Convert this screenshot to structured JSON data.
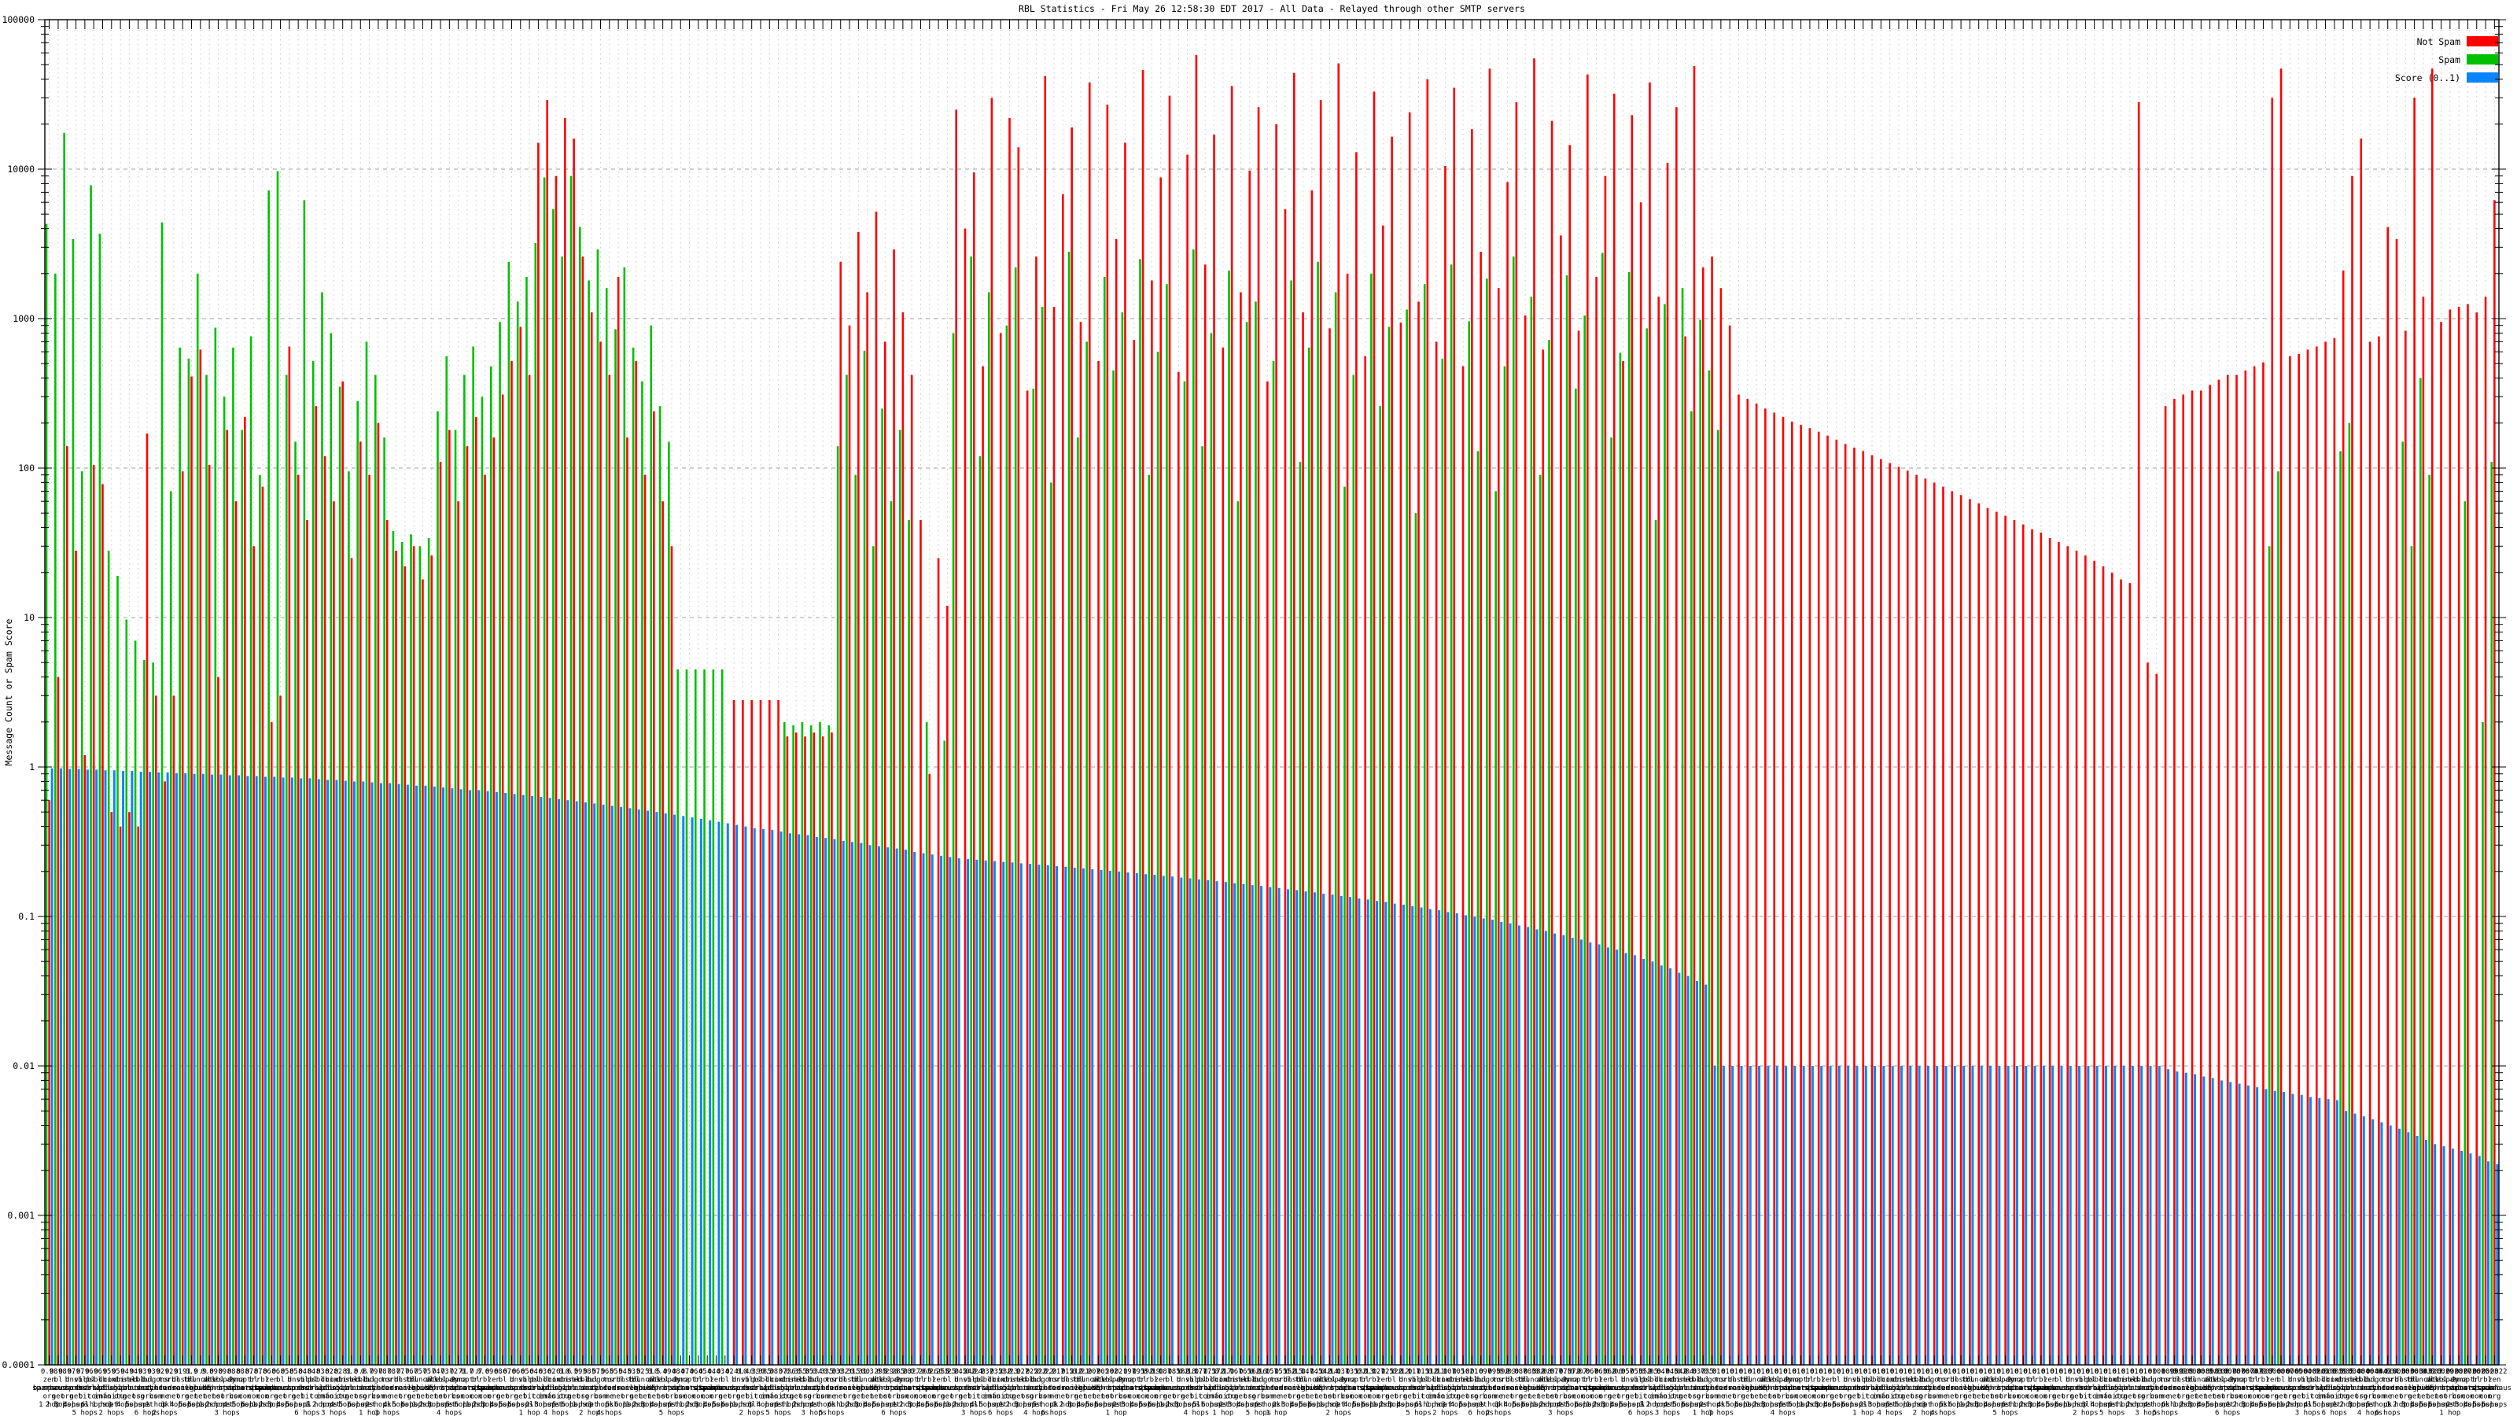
{
  "title": "RBL Statistics - Fri May 26 12:58:30 EDT 2017 - All Data - Relayed through other SMTP servers",
  "axes": {
    "ylabel": "Message Count or Spam Score",
    "y_tick_labels": [
      "100000",
      "10000",
      "1000",
      "100",
      "10",
      "1",
      "0.1",
      "0.01",
      "0.001",
      "0.0001"
    ]
  },
  "legend": {
    "not_spam": "Not Spam",
    "spam": "Spam",
    "score": "Score (0..1)"
  },
  "colors": {
    "not_spam": "#ff0000",
    "spam": "#00c000",
    "score": "#0a84ff",
    "grid_major": "#a0a0a0",
    "grid_minor": "#c8c8c8",
    "axis": "#000000"
  },
  "rbl_pool": [
    "zen.spamhaus.org",
    "bl.spamcop.net",
    "b.barracudacentral.org",
    "dnsbl.sorbs.net",
    "virbl.dnsbl.bit.nl",
    "psbl.surriel.com",
    "db.wpbl.info",
    "ix.dnsbl.manitu.net",
    "combined.njabl.org",
    "dnsbl-1.uceprotect.net",
    "cbl.abuseat.org",
    "dul.dnsbl.sorbs.net",
    "bogons.cymru.com",
    "tor.dan.me.uk",
    "rbl.interserver.net",
    "dnsbl.dronebl.org",
    "bl.mailspike.net",
    "truncate.gbudb.net",
    "all.s5h.net",
    "dnsbl-2.uceprotect.net",
    "spam.dnsbl.sorbs.net",
    "dyna.spamrats.com",
    "noptr.spamrats.com",
    "bl.nordspam.com",
    "rbl.spamlab.com"
  ],
  "chart_data": {
    "type": "bar",
    "title": "RBL Statistics - Fri May 26 12:58:30 EDT 2017 - All Data - Relayed through other SMTP servers",
    "yscale": "log",
    "ylim": [
      0.0001,
      100000
    ],
    "grid": true,
    "legend_position": "top-right-inside",
    "rbl_index": [
      0,
      1,
      2,
      3,
      4,
      5,
      6,
      7,
      8,
      9,
      10,
      11,
      12,
      13,
      14,
      15,
      16,
      17,
      18,
      19,
      20,
      21,
      22,
      23,
      24,
      0,
      1,
      2,
      3,
      4,
      5,
      6,
      7,
      8,
      9,
      10,
      11,
      12,
      13,
      14,
      15,
      16,
      17,
      18,
      19,
      20,
      21,
      22,
      23,
      24,
      0,
      1,
      2,
      3,
      4,
      5,
      6,
      7,
      8,
      9,
      10,
      11,
      12,
      13,
      14,
      15,
      16,
      17,
      18,
      19,
      20,
      21,
      22,
      23,
      24,
      0,
      1,
      2,
      3,
      4,
      5,
      6,
      7,
      8,
      9,
      10,
      11,
      12,
      13,
      14,
      15,
      16,
      17,
      18,
      19,
      20,
      21,
      22,
      23,
      24,
      0,
      1,
      2,
      3,
      4,
      5,
      6,
      7,
      8,
      9,
      10,
      11,
      12,
      13,
      14,
      15,
      16,
      17,
      18,
      19,
      20,
      21,
      22,
      23,
      24,
      0,
      1,
      2,
      3,
      4,
      5,
      6,
      7,
      8,
      9,
      10,
      11,
      12,
      13,
      14,
      15,
      16,
      17,
      18,
      19,
      20,
      21,
      22,
      23,
      24,
      0,
      1,
      2,
      3,
      4,
      5,
      6,
      7,
      8,
      9,
      10,
      11,
      12,
      13,
      14,
      15,
      16,
      17,
      18,
      19,
      20,
      21,
      22,
      23,
      24,
      0,
      1,
      2,
      3,
      4,
      5,
      6,
      7,
      8,
      9,
      10,
      11,
      12,
      13,
      14,
      15,
      16,
      17,
      18,
      19,
      20,
      21,
      22,
      23,
      24,
      0,
      1,
      2,
      3,
      4,
      5,
      6,
      7,
      8,
      9,
      10,
      11,
      12,
      13,
      14,
      15,
      16,
      17,
      18,
      19,
      20,
      21,
      22,
      23,
      24,
      0,
      1,
      2,
      3,
      4,
      5,
      6,
      7,
      8,
      9,
      10,
      11,
      12,
      13,
      14,
      15,
      16,
      17,
      18,
      19,
      20,
      21,
      22,
      23,
      24,
      0,
      1,
      2,
      3,
      4,
      5,
      6,
      7,
      8,
      9,
      10,
      11,
      12,
      13,
      14,
      15,
      16,
      17,
      18,
      19,
      20,
      21,
      22,
      23,
      24,
      0
    ],
    "hops": [
      1,
      2,
      3,
      4,
      5,
      6,
      1,
      2,
      3,
      4,
      5,
      6,
      1,
      2,
      3,
      4,
      5,
      6,
      1,
      2,
      3,
      4,
      5,
      6,
      1,
      2,
      3,
      4,
      5,
      6,
      1,
      2,
      3,
      4,
      5,
      6,
      1,
      2,
      3,
      4,
      5,
      6,
      1,
      2,
      3,
      4,
      5,
      6,
      1,
      2,
      3,
      4,
      5,
      6,
      1,
      2,
      3,
      4,
      5,
      6,
      1,
      2,
      3,
      4,
      5,
      6,
      1,
      2,
      3,
      4,
      5,
      6,
      1,
      2,
      3,
      4,
      5,
      6,
      1,
      2,
      3,
      4,
      5,
      6,
      1,
      2,
      3,
      4,
      5,
      6,
      1,
      2,
      3,
      4,
      5,
      6,
      1,
      2,
      3,
      4,
      5,
      6,
      1,
      2,
      3,
      4,
      5,
      6,
      1,
      2,
      3,
      4,
      5,
      6,
      1,
      2,
      3,
      4,
      5,
      6,
      1,
      2,
      3,
      4,
      5,
      6,
      1,
      2,
      3,
      4,
      5,
      6,
      1,
      2,
      3,
      4,
      5,
      6,
      1,
      2,
      3,
      4,
      5,
      6,
      1,
      2,
      3,
      4,
      5,
      6,
      1,
      2,
      3,
      4,
      5,
      6,
      1,
      2,
      3,
      4,
      5,
      6,
      1,
      2,
      3,
      4,
      5,
      6,
      1,
      2,
      3,
      4,
      5,
      6,
      1,
      2,
      3,
      4,
      5,
      6,
      1,
      2,
      3,
      4,
      5,
      6,
      1,
      2,
      3,
      4,
      5,
      6,
      1,
      2,
      3,
      4,
      5,
      6,
      1,
      2,
      3,
      4,
      5,
      6,
      1,
      2,
      3,
      4,
      5,
      6,
      1,
      2,
      3,
      4,
      5,
      6,
      1,
      2,
      3,
      4,
      5,
      6,
      1,
      2,
      3,
      4,
      5,
      6,
      1,
      2,
      3,
      4,
      5,
      6,
      1,
      2,
      3,
      4,
      5,
      6,
      1,
      2,
      3,
      4,
      5,
      6,
      1,
      2,
      3,
      4,
      5,
      6,
      1,
      2,
      3,
      4,
      5,
      6,
      1,
      2,
      3,
      4,
      5,
      6,
      1,
      2,
      3,
      4,
      5,
      6,
      1,
      2,
      3,
      4,
      5,
      6
    ],
    "series": [
      {
        "name": "Not Spam",
        "color_key": "not_spam",
        "values": [
          0.6,
          4,
          140,
          28,
          1.2,
          105,
          78,
          0.5,
          0.4,
          0.5,
          0.4,
          170,
          3,
          0.8,
          3,
          95,
          410,
          620,
          105,
          4,
          180,
          60,
          220,
          30,
          75,
          2,
          3,
          650,
          90,
          45,
          260,
          120,
          60,
          380,
          25,
          150,
          90,
          200,
          45,
          28,
          22,
          30,
          18,
          26,
          110,
          180,
          60,
          140,
          220,
          90,
          160,
          310,
          520,
          880,
          420,
          15000,
          29000,
          9000,
          22000,
          16000,
          2600,
          1100,
          700,
          420,
          1900,
          160,
          520,
          90,
          240,
          60,
          30,
          0,
          0,
          0,
          0,
          0,
          0,
          2.8,
          2.8,
          2.8,
          2.8,
          2.8,
          2.8,
          1.6,
          1.7,
          1.6,
          1.7,
          1.6,
          1.7,
          2400,
          900,
          3800,
          1500,
          5200,
          700,
          2900,
          1100,
          420,
          45,
          0.9,
          25,
          12,
          25000,
          4000,
          9500,
          480,
          30000,
          800,
          22000,
          14000,
          330,
          2600,
          42000,
          1200,
          6800,
          19000,
          950,
          38000,
          520,
          27000,
          3400,
          15000,
          720,
          46000,
          1800,
          8800,
          31000,
          440,
          12500,
          58000,
          2300,
          17000,
          640,
          36000,
          1500,
          9800,
          26000,
          380,
          20000,
          5400,
          44000,
          1100,
          7200,
          29000,
          860,
          51000,
          2000,
          13000,
          560,
          33000,
          4200,
          16500,
          940,
          24000,
          1300,
          40000,
          700,
          10500,
          35000,
          480,
          18500,
          2800,
          47000,
          1600,
          8200,
          28000,
          1050,
          55000,
          620,
          21000,
          3600,
          14500,
          830,
          43000,
          1900,
          9000,
          32000,
          520,
          23000,
          6000,
          38000,
          1400,
          11000,
          26000,
          760,
          49000,
          2200,
          2600,
          1600,
          900,
          310,
          290,
          270,
          250,
          235,
          220,
          205,
          195,
          185,
          175,
          165,
          155,
          145,
          137,
          130,
          122,
          115,
          108,
          102,
          96,
          90,
          85,
          80,
          75,
          70,
          66,
          62,
          58,
          54,
          51,
          48,
          45,
          42,
          39,
          37,
          34,
          32,
          30,
          28,
          26,
          24,
          22,
          20,
          18,
          17,
          28000,
          5,
          4.2,
          260,
          290,
          310,
          330,
          330,
          360,
          390,
          420,
          420,
          450,
          480,
          510,
          30000,
          47000,
          560,
          580,
          620,
          650,
          700,
          740,
          2100,
          9000,
          16000,
          700,
          760,
          4100,
          3400,
          830,
          30000,
          1400,
          47000,
          950,
          1150,
          1200,
          1250,
          1100,
          1400,
          6200
        ]
      },
      {
        "name": "Spam",
        "color_key": "spam",
        "values": [
          4300,
          2000,
          17500,
          3400,
          95,
          7800,
          3700,
          28,
          19,
          9.7,
          7,
          5.2,
          5,
          4400,
          70,
          640,
          540,
          2000,
          420,
          870,
          300,
          640,
          180,
          760,
          90,
          7200,
          9700,
          420,
          150,
          6200,
          520,
          1500,
          800,
          350,
          95,
          280,
          700,
          420,
          160,
          38,
          32,
          36,
          30,
          34,
          240,
          560,
          180,
          420,
          650,
          300,
          480,
          950,
          2400,
          1300,
          1900,
          3200,
          8800,
          5400,
          2600,
          9000,
          4100,
          1800,
          2900,
          1600,
          850,
          2200,
          640,
          380,
          900,
          260,
          150,
          4.5,
          4.5,
          4.5,
          4.5,
          4.5,
          4.5,
          0,
          0,
          0,
          0,
          0,
          0,
          2,
          1.9,
          2,
          1.9,
          2,
          1.9,
          140,
          420,
          90,
          610,
          30,
          250,
          60,
          180,
          45,
          0,
          2,
          0,
          1.5,
          800,
          0,
          2600,
          120,
          1500,
          0,
          900,
          2200,
          0,
          340,
          1200,
          80,
          0,
          2800,
          160,
          700,
          0,
          1900,
          450,
          1100,
          0,
          2500,
          90,
          600,
          1700,
          0,
          380,
          2900,
          140,
          800,
          0,
          2100,
          60,
          950,
          1300,
          0,
          520,
          0,
          1800,
          110,
          640,
          2400,
          0,
          1500,
          75,
          420,
          0,
          2000,
          260,
          880,
          0,
          1150,
          50,
          1700,
          0,
          540,
          2300,
          0,
          960,
          130,
          1850,
          70,
          480,
          2600,
          0,
          1400,
          90,
          720,
          0,
          1950,
          340,
          1050,
          0,
          2750,
          160,
          590,
          2050,
          0,
          860,
          45,
          1250,
          0,
          1600,
          240,
          980,
          450,
          180,
          0,
          0,
          0,
          0,
          0,
          0,
          0,
          0,
          0,
          0,
          0,
          0,
          0,
          0,
          0,
          0,
          0,
          0,
          0,
          0,
          0,
          0,
          0,
          0,
          0,
          0,
          0,
          0,
          0,
          0,
          0,
          0,
          0,
          0,
          0,
          0,
          0,
          0,
          0,
          0,
          0,
          0,
          0,
          0,
          0,
          0,
          0,
          0,
          0,
          0,
          0,
          0,
          0,
          0,
          0,
          0,
          0,
          0,
          0,
          0,
          0,
          30,
          95,
          0,
          0,
          0,
          0,
          0,
          0,
          130,
          200,
          0,
          0,
          0,
          0,
          0,
          150,
          30,
          400,
          90,
          0,
          0,
          0,
          60,
          0,
          2,
          110
        ]
      },
      {
        "name": "Score (0..1)",
        "color_key": "score",
        "values": [
          0.98,
          0.98,
          0.97,
          0.97,
          0.96,
          0.96,
          0.95,
          0.95,
          0.94,
          0.94,
          0.93,
          0.93,
          0.92,
          0.92,
          0.91,
          0.91,
          0.9,
          0.9,
          0.89,
          0.89,
          0.88,
          0.88,
          0.87,
          0.87,
          0.86,
          0.86,
          0.85,
          0.85,
          0.84,
          0.84,
          0.83,
          0.82,
          0.82,
          0.81,
          0.8,
          0.8,
          0.79,
          0.78,
          0.78,
          0.77,
          0.76,
          0.75,
          0.75,
          0.74,
          0.73,
          0.72,
          0.71,
          0.7,
          0.7,
          0.69,
          0.68,
          0.67,
          0.66,
          0.65,
          0.64,
          0.63,
          0.62,
          0.61,
          0.6,
          0.59,
          0.58,
          0.57,
          0.56,
          0.55,
          0.54,
          0.53,
          0.52,
          0.51,
          0.5,
          0.49,
          0.48,
          0.47,
          0.46,
          0.45,
          0.44,
          0.43,
          0.42,
          0.41,
          0.4,
          0.39,
          0.385,
          0.38,
          0.37,
          0.36,
          0.355,
          0.35,
          0.34,
          0.335,
          0.33,
          0.32,
          0.315,
          0.31,
          0.3,
          0.295,
          0.29,
          0.285,
          0.28,
          0.27,
          0.265,
          0.26,
          0.255,
          0.25,
          0.245,
          0.242,
          0.24,
          0.237,
          0.235,
          0.232,
          0.23,
          0.227,
          0.225,
          0.222,
          0.22,
          0.217,
          0.215,
          0.212,
          0.21,
          0.207,
          0.205,
          0.202,
          0.2,
          0.197,
          0.195,
          0.192,
          0.19,
          0.187,
          0.185,
          0.182,
          0.18,
          0.177,
          0.175,
          0.172,
          0.17,
          0.167,
          0.165,
          0.162,
          0.16,
          0.157,
          0.155,
          0.152,
          0.15,
          0.147,
          0.145,
          0.142,
          0.14,
          0.137,
          0.135,
          0.132,
          0.13,
          0.127,
          0.125,
          0.122,
          0.12,
          0.117,
          0.115,
          0.112,
          0.11,
          0.107,
          0.105,
          0.102,
          0.1,
          0.097,
          0.095,
          0.092,
          0.09,
          0.087,
          0.085,
          0.082,
          0.08,
          0.077,
          0.075,
          0.072,
          0.07,
          0.067,
          0.065,
          0.062,
          0.06,
          0.057,
          0.055,
          0.052,
          0.05,
          0.047,
          0.045,
          0.042,
          0.04,
          0.037,
          0.035,
          0.01,
          0.01,
          0.01,
          0.01,
          0.01,
          0.01,
          0.01,
          0.01,
          0.01,
          0.01,
          0.01,
          0.01,
          0.01,
          0.01,
          0.01,
          0.01,
          0.01,
          0.01,
          0.01,
          0.01,
          0.01,
          0.01,
          0.01,
          0.01,
          0.01,
          0.01,
          0.01,
          0.01,
          0.01,
          0.01,
          0.01,
          0.01,
          0.01,
          0.01,
          0.01,
          0.01,
          0.01,
          0.01,
          0.01,
          0.01,
          0.01,
          0.01,
          0.01,
          0.01,
          0.01,
          0.01,
          0.01,
          0.01,
          0.01,
          0.01,
          0.01,
          0.0095,
          0.0092,
          0.009,
          0.0088,
          0.0085,
          0.0083,
          0.008,
          0.0078,
          0.0076,
          0.0074,
          0.0072,
          0.007,
          0.0068,
          0.0067,
          0.0065,
          0.0064,
          0.0062,
          0.0061,
          0.006,
          0.0059,
          0.005,
          0.0048,
          0.0046,
          0.0044,
          0.0042,
          0.004,
          0.0038,
          0.0036,
          0.0034,
          0.0032,
          0.003,
          0.0029,
          0.0028,
          0.0027,
          0.0026,
          0.0025,
          0.0023,
          0.0022
        ]
      }
    ]
  }
}
